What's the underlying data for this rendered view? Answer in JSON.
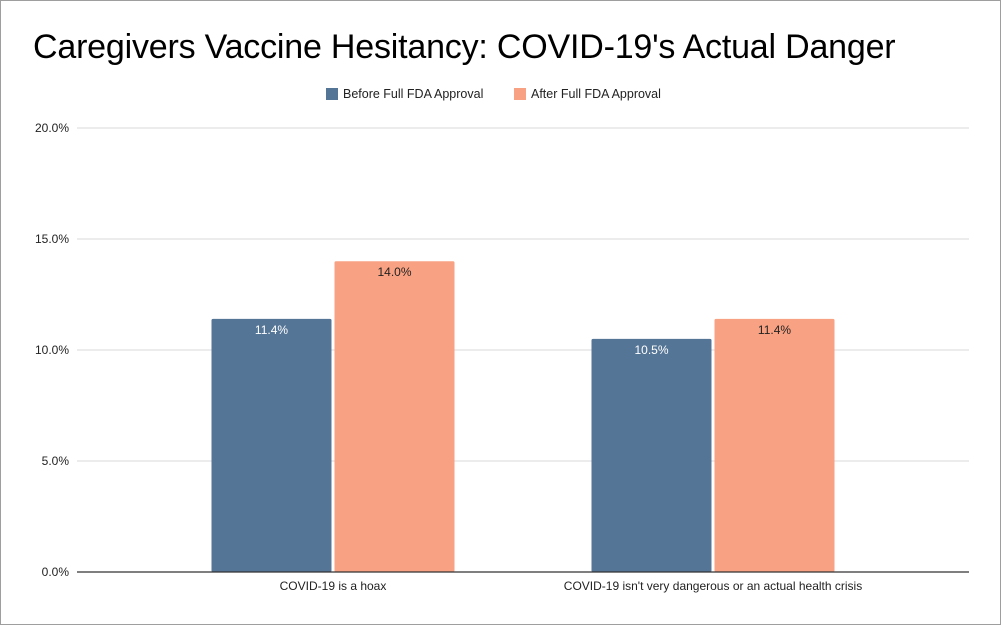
{
  "chart_data": {
    "type": "bar",
    "title": "Caregivers Vaccine Hesitancy: COVID-19's Actual Danger",
    "xlabel": "",
    "ylabel": "",
    "categories": [
      "COVID-19 is a hoax",
      "COVID-19 isn't very dangerous or an actual health crisis"
    ],
    "series": [
      {
        "name": "Before Full FDA Approval",
        "values": [
          11.4,
          10.5
        ],
        "labels": [
          "11.4%",
          "10.5%"
        ],
        "color": "#557596",
        "label_color": "#ffffff"
      },
      {
        "name": "After Full FDA Approval",
        "values": [
          14.0,
          11.4
        ],
        "labels": [
          "14.0%",
          "11.4%"
        ],
        "color": "#f9a283",
        "label_color": "#222222"
      }
    ],
    "ylim": [
      0,
      20
    ],
    "yticks": [
      0,
      5,
      10,
      15,
      20
    ],
    "ytick_labels": [
      "0.0%",
      "5.0%",
      "10.0%",
      "15.0%",
      "20.0%"
    ],
    "legend_position": "top-center",
    "grid": true,
    "gridline_color": "#d9d9d9",
    "axis_color": "#333333"
  }
}
